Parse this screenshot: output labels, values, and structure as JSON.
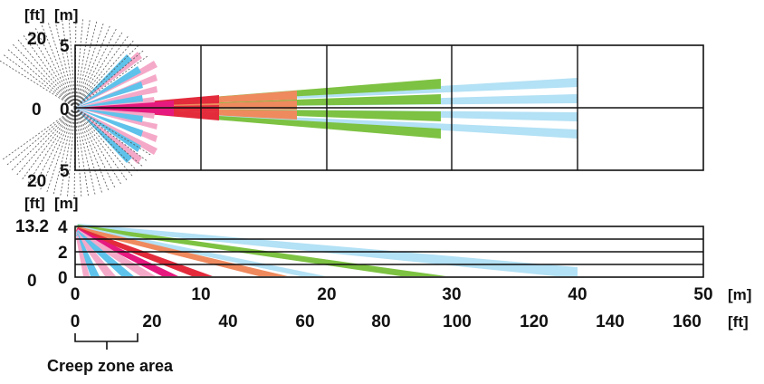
{
  "top_view": {
    "unit_ft": "[ft]",
    "unit_m": "[m]",
    "ft_top": "20",
    "ft_mid": "0",
    "ft_bottom": "20",
    "m_top": "5",
    "m_mid": "0",
    "m_bottom": "5"
  },
  "side_view": {
    "unit_ft": "[ft]",
    "unit_m": "[m]",
    "ft_top": "13.2",
    "ft_bottom": "0",
    "m_ticks": [
      "4",
      "2",
      "0"
    ]
  },
  "x_axis_m": {
    "ticks": [
      "0",
      "10",
      "20",
      "30",
      "40",
      "50"
    ],
    "unit": "[m]"
  },
  "x_axis_ft": {
    "ticks": [
      "0",
      "20",
      "40",
      "60",
      "80",
      "100",
      "120",
      "140",
      "160"
    ],
    "unit": "[ft]"
  },
  "creep_zone_label": "Creep zone area",
  "colors": {
    "light_blue": "#b3e1f5",
    "blue": "#5fc2ea",
    "pink": "#f5a9c8",
    "magenta": "#e6197f",
    "red": "#e32b3c",
    "orange": "#ef8a5e",
    "green": "#7dc242",
    "creep_lines": "#555555"
  },
  "detection_ranges_m": {
    "light_blue": 40,
    "green": 29,
    "orange": 17,
    "red": 11,
    "magenta": 7,
    "pink": 5
  }
}
